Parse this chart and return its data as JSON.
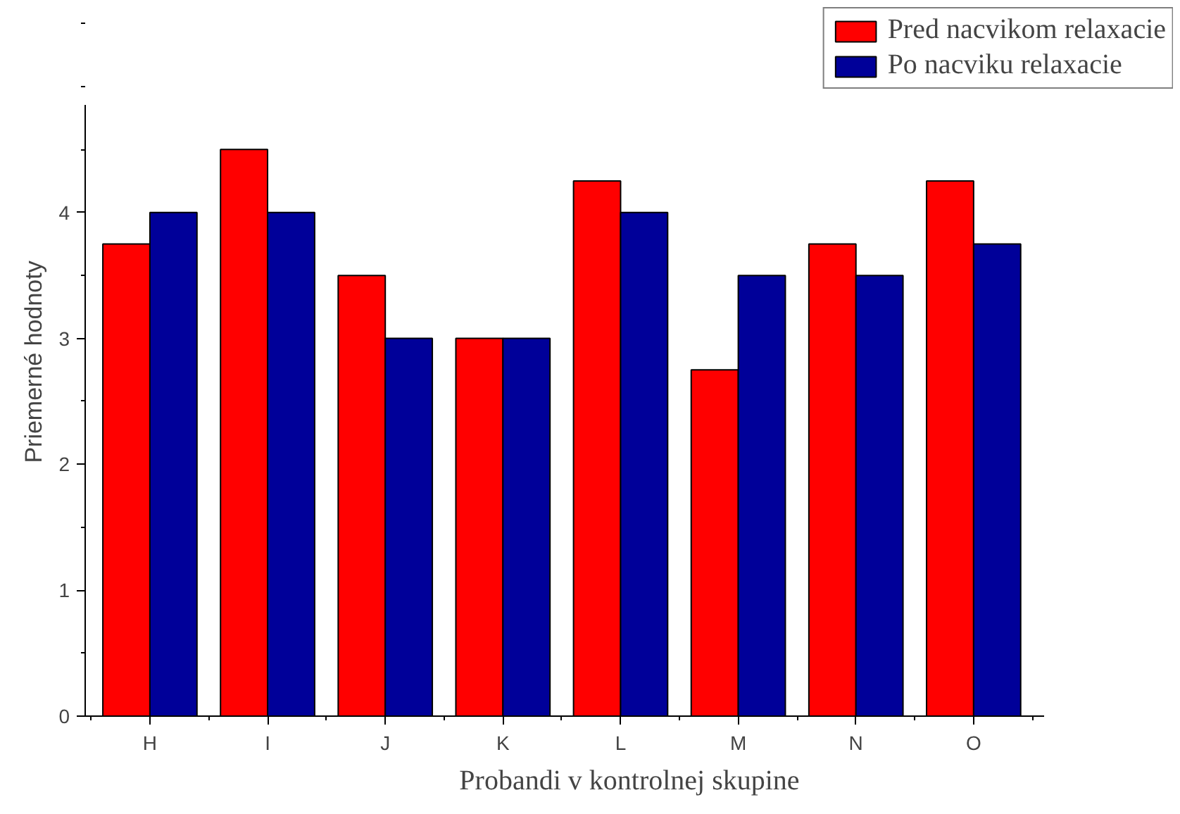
{
  "chart_data": {
    "type": "bar",
    "xlabel": "Probandi v kontrolnej skupine",
    "ylabel": "Priemerné hodnoty",
    "categories": [
      "H",
      "I",
      "J",
      "K",
      "L",
      "M",
      "N",
      "O"
    ],
    "series": [
      {
        "name": "Pred nacvikom relaxacie",
        "color": "#ff0000",
        "values": [
          3.75,
          4.5,
          3.5,
          3,
          4.25,
          2.75,
          3.75,
          4.25
        ]
      },
      {
        "name": "Po nacviku relaxacie",
        "color": "#000099",
        "values": [
          4,
          4,
          3,
          3,
          4,
          3.5,
          3.5,
          3.75
        ]
      }
    ],
    "ylim": [
      0,
      4.85
    ],
    "yticks": [
      0,
      1,
      2,
      3,
      4
    ],
    "grid": false,
    "legend": "top right"
  }
}
